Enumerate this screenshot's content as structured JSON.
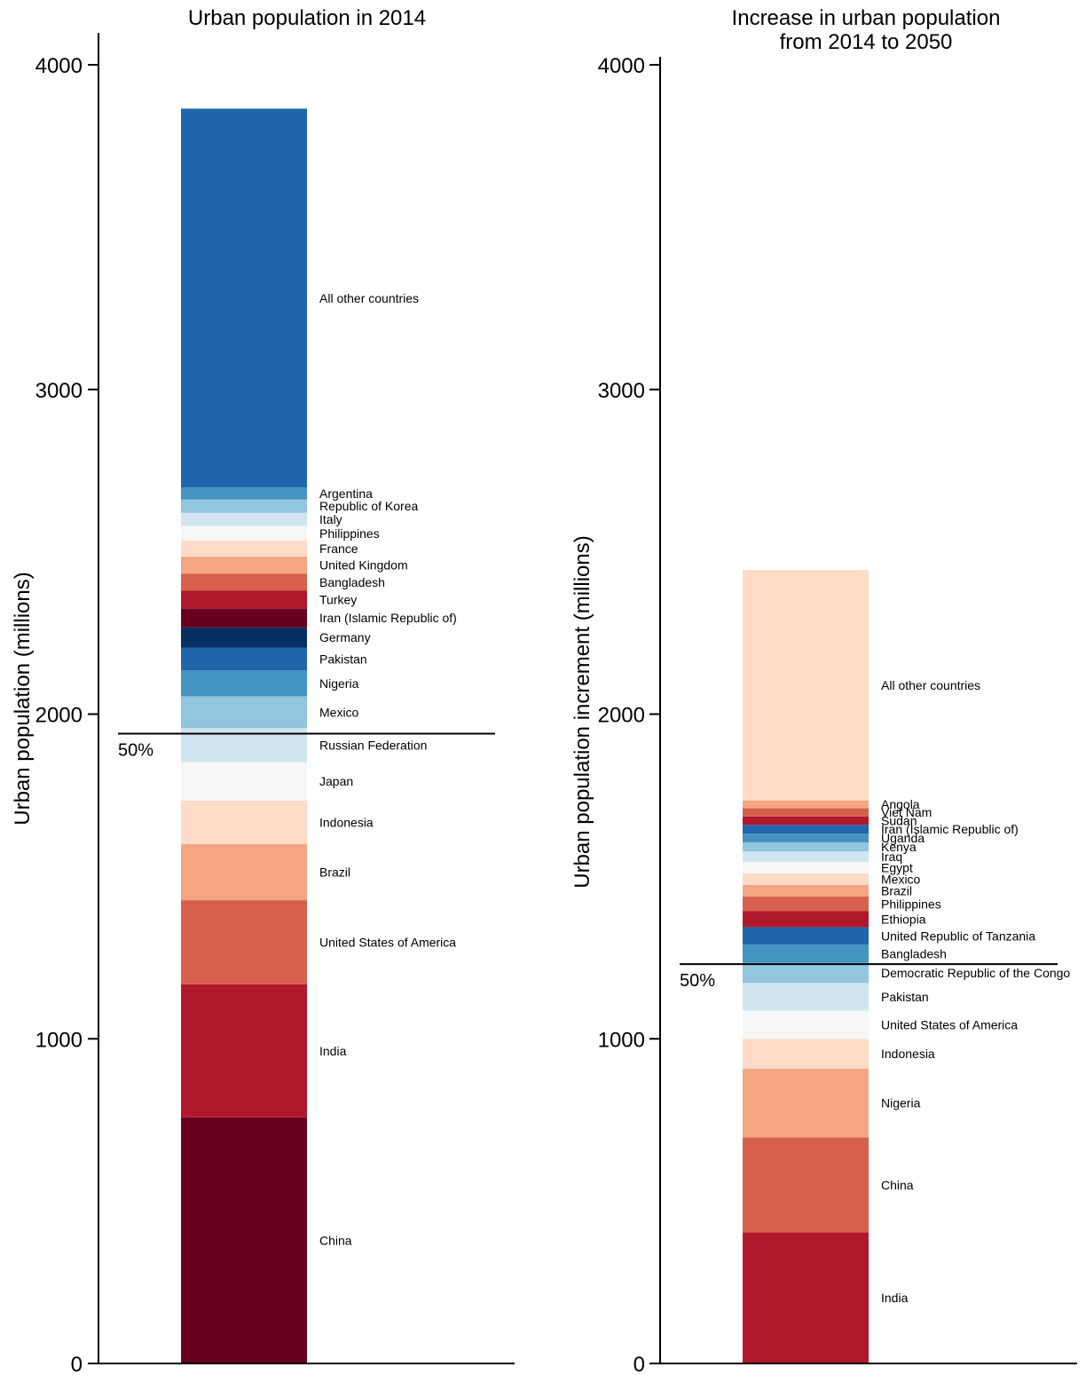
{
  "chart_data": [
    {
      "type": "bar",
      "stacked": true,
      "title": "Urban population in 2014",
      "title_lines": [
        "Urban population in 2014"
      ],
      "ylabel": "Urban population (millions)",
      "ylim": [
        0,
        4100
      ],
      "yticks": [
        0,
        1000,
        2000,
        3000,
        4000
      ],
      "half_line_value": 1940,
      "half_label": "50%",
      "segments": [
        {
          "name": "China",
          "value": 758,
          "color": "#67001f"
        },
        {
          "name": "India",
          "value": 410,
          "color": "#b2182b"
        },
        {
          "name": "United States of America",
          "value": 259,
          "color": "#d6604d"
        },
        {
          "name": "Brazil",
          "value": 173,
          "color": "#f4a582"
        },
        {
          "name": "Indonesia",
          "value": 134,
          "color": "#fddbc7"
        },
        {
          "name": "Japan",
          "value": 118,
          "color": "#f7f7f7"
        },
        {
          "name": "Russian Federation",
          "value": 105,
          "color": "#d1e5f0"
        },
        {
          "name": "Mexico",
          "value": 98,
          "color": "#92c5de"
        },
        {
          "name": "Nigeria",
          "value": 80,
          "color": "#4393c3"
        },
        {
          "name": "Pakistan",
          "value": 70,
          "color": "#2166ac"
        },
        {
          "name": "Germany",
          "value": 62,
          "color": "#053061"
        },
        {
          "name": "Iran (Islamic Republic of)",
          "value": 58,
          "color": "#67001f"
        },
        {
          "name": "Turkey",
          "value": 55,
          "color": "#b2182b"
        },
        {
          "name": "Bangladesh",
          "value": 53,
          "color": "#d6604d"
        },
        {
          "name": "United Kingdom",
          "value": 52,
          "color": "#f4a582"
        },
        {
          "name": "France",
          "value": 50,
          "color": "#fddbc7"
        },
        {
          "name": "Philippines",
          "value": 44,
          "color": "#f7f7f7"
        },
        {
          "name": "Italy",
          "value": 41,
          "color": "#d1e5f0"
        },
        {
          "name": "Republic of Korea",
          "value": 41,
          "color": "#92c5de"
        },
        {
          "name": "Argentina",
          "value": 37,
          "color": "#4393c3"
        },
        {
          "name": "All other countries",
          "value": 1167,
          "color": "#2166ac"
        }
      ]
    },
    {
      "type": "bar",
      "stacked": true,
      "title": "Increase in urban population from 2014 to 2050",
      "title_lines": [
        "Increase in urban population",
        "from 2014 to 2050"
      ],
      "ylabel": "Urban population increment (millions)",
      "ylim": [
        0,
        4100
      ],
      "yticks": [
        0,
        1000,
        2000,
        3000,
        4000
      ],
      "half_line_value": 1230,
      "half_label": "50%",
      "segments": [
        {
          "name": "India",
          "value": 404,
          "color": "#b2182b"
        },
        {
          "name": "China",
          "value": 292,
          "color": "#d6604d"
        },
        {
          "name": "Nigeria",
          "value": 212,
          "color": "#f4a582"
        },
        {
          "name": "Indonesia",
          "value": 92,
          "color": "#fddbc7"
        },
        {
          "name": "United States of America",
          "value": 87,
          "color": "#f7f7f7"
        },
        {
          "name": "Pakistan",
          "value": 85,
          "color": "#d1e5f0"
        },
        {
          "name": "Democratic Republic of the Congo",
          "value": 62,
          "color": "#92c5de"
        },
        {
          "name": "Bangladesh",
          "value": 56,
          "color": "#4393c3"
        },
        {
          "name": "United Republic of Tanzania",
          "value": 54,
          "color": "#2166ac"
        },
        {
          "name": "Ethiopia",
          "value": 49,
          "color": "#b2182b"
        },
        {
          "name": "Philippines",
          "value": 45,
          "color": "#d6604d"
        },
        {
          "name": "Brazil",
          "value": 36,
          "color": "#f4a582"
        },
        {
          "name": "Mexico",
          "value": 36,
          "color": "#fddbc7"
        },
        {
          "name": "Egypt",
          "value": 35,
          "color": "#f7f7f7"
        },
        {
          "name": "Iraq",
          "value": 32,
          "color": "#d1e5f0"
        },
        {
          "name": "Kenya",
          "value": 28,
          "color": "#92c5de"
        },
        {
          "name": "Uganda",
          "value": 27,
          "color": "#4393c3"
        },
        {
          "name": "Iran (Islamic Republic of)",
          "value": 27,
          "color": "#2166ac"
        },
        {
          "name": "Sudan",
          "value": 26,
          "color": "#b2182b"
        },
        {
          "name": "Viet Nam",
          "value": 25,
          "color": "#d6604d"
        },
        {
          "name": "Angola",
          "value": 24,
          "color": "#f4a582"
        },
        {
          "name": "All other countries",
          "value": 710,
          "color": "#fddbc7"
        }
      ]
    }
  ]
}
